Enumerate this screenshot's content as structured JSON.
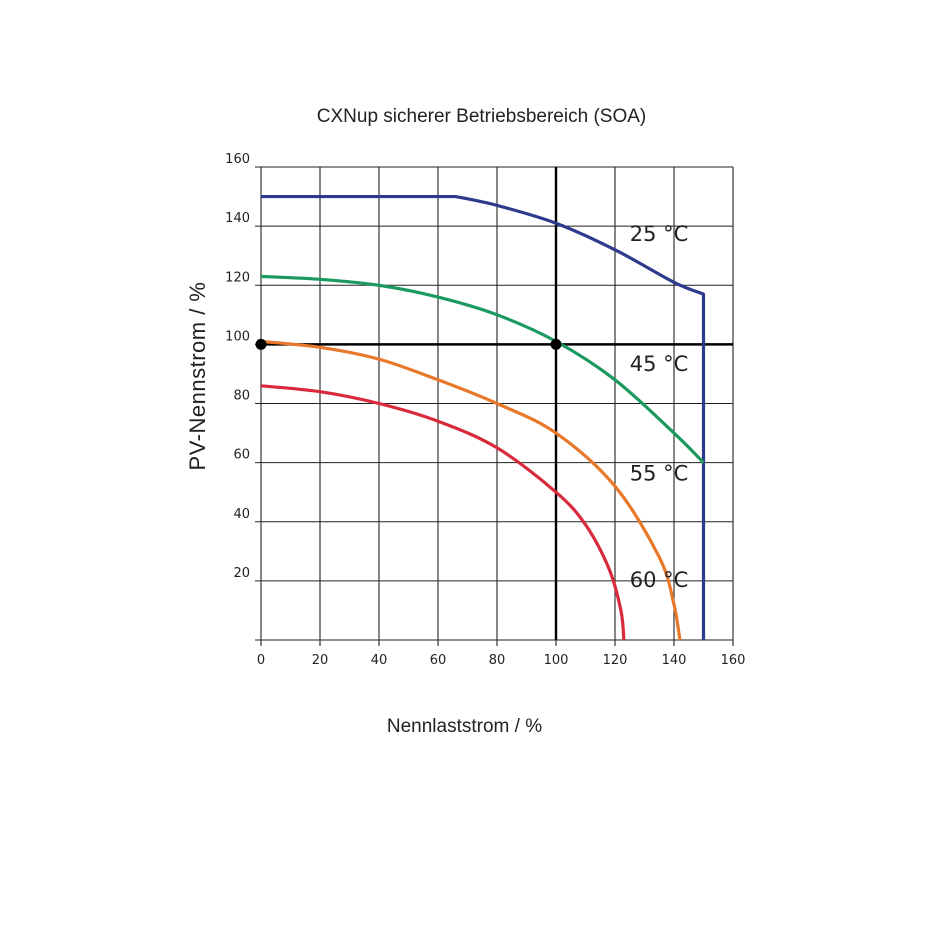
{
  "chart_data": {
    "type": "line",
    "title": "CXNup sicherer Betriebsbereich (SOA)",
    "xlabel": "Nennlaststrom / %",
    "ylabel": "PV-Nennstrom / %",
    "xlim": [
      0,
      160
    ],
    "ylim": [
      0,
      160
    ],
    "x_ticks": [
      0,
      20,
      40,
      60,
      80,
      100,
      120,
      140,
      160
    ],
    "y_ticks": [
      20,
      40,
      60,
      80,
      100,
      120,
      140,
      160
    ],
    "grid": true,
    "series": [
      {
        "name": "25 °C",
        "color": "#2e3a8c",
        "x": [
          0,
          66,
          80,
          100,
          120,
          140,
          150,
          150
        ],
        "y": [
          150,
          150,
          147,
          141,
          132,
          121,
          117,
          0
        ]
      },
      {
        "name": "45 °C",
        "color": "#1a9a5e",
        "x": [
          0,
          20,
          40,
          60,
          80,
          100,
          120,
          140,
          150
        ],
        "y": [
          123,
          122,
          120,
          116,
          110,
          101,
          88,
          70,
          60
        ]
      },
      {
        "name": "55 °C",
        "color": "#e8782a",
        "x": [
          0,
          20,
          40,
          60,
          80,
          100,
          120,
          135,
          140,
          142
        ],
        "y": [
          101,
          99,
          95,
          88,
          80,
          70,
          52,
          28,
          12,
          0
        ]
      },
      {
        "name": "60 °C",
        "color": "#d92a3c",
        "x": [
          0,
          20,
          40,
          60,
          80,
          100,
          110,
          118,
          122,
          123
        ],
        "y": [
          86,
          84,
          80,
          74,
          65,
          50,
          39,
          24,
          10,
          0
        ]
      }
    ],
    "reference_lines": [
      {
        "orientation": "horizontal",
        "value": 100
      },
      {
        "orientation": "vertical",
        "value": 100
      }
    ],
    "markers": [
      {
        "x": 0,
        "y": 100
      },
      {
        "x": 100,
        "y": 100
      }
    ],
    "annotations": [
      {
        "text": "25 °C",
        "x": 125,
        "y": 135
      },
      {
        "text": "45 °C",
        "x": 125,
        "y": 91
      },
      {
        "text": "55 °C",
        "x": 125,
        "y": 54
      },
      {
        "text": "60 °C",
        "x": 125,
        "y": 18
      }
    ]
  }
}
